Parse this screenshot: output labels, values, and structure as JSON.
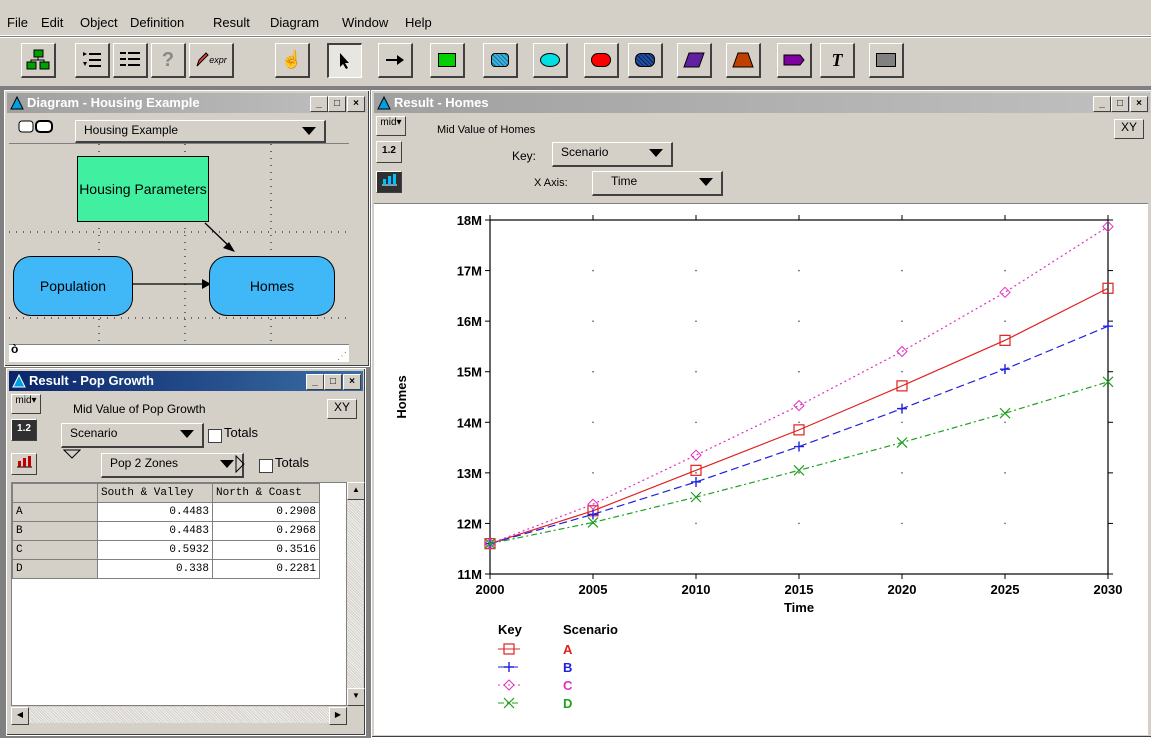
{
  "menu": [
    "File",
    "Edit",
    "Object",
    "Definition",
    "Result",
    "Diagram",
    "Window",
    "Help"
  ],
  "toolbar": {
    "expr_label": "expr",
    "text_tool_label": "T",
    "tools": [
      {
        "name": "diagram-tool",
        "icon": "diagram-icon"
      },
      {
        "name": "outline-tool",
        "icon": "outline-icon"
      },
      {
        "name": "list-tool",
        "icon": "list-icon"
      },
      {
        "name": "help-tool",
        "icon": "help-icon"
      },
      {
        "name": "expr-tool",
        "icon": "pencil-icon"
      },
      {
        "name": "hand-tool",
        "icon": "hand-icon"
      },
      {
        "name": "pointer-tool",
        "icon": "arrow-pointer-icon"
      },
      {
        "name": "arrow-tool",
        "icon": "arrow-right-icon"
      }
    ],
    "node_colors": [
      "#00d000",
      "#40b0d8",
      "#00e0e0",
      "#ff0000",
      "#2050a0",
      "#6020a0",
      "#c04000",
      "#8000a0",
      "#808080"
    ]
  },
  "diagram_window": {
    "title": "Diagram - Housing Example",
    "selector_value": "Housing Example",
    "nodes": {
      "housing_params": "Housing Parameters",
      "population": "Population",
      "homes": "Homes"
    },
    "status_glyph": "ò"
  },
  "popgrowth_window": {
    "title": "Result - Pop Growth",
    "mid_label": "mid",
    "num_label": "1.2",
    "heading": "Mid Value of Pop Growth",
    "xy_label": "XY",
    "row_dropdown": "Scenario",
    "totals_label": "Totals",
    "col_dropdown": "Pop 2 Zones",
    "col_totals_label": "Totals",
    "columns": [
      "South & Valley",
      "North & Coast"
    ],
    "rows": [
      {
        "label": "A",
        "values": [
          "0.4483",
          "0.2908"
        ]
      },
      {
        "label": "B",
        "values": [
          "0.4483",
          "0.2968"
        ]
      },
      {
        "label": "C",
        "values": [
          "0.5932",
          "0.3516"
        ]
      },
      {
        "label": "D",
        "values": [
          "0.338",
          "0.2281"
        ]
      }
    ]
  },
  "homes_window": {
    "title": "Result - Homes",
    "mid_label": "mid",
    "num_label": "1.2",
    "heading": "Mid Value of Homes",
    "xy_label": "XY",
    "key_label": "Key:",
    "key_dropdown": "Scenario",
    "xaxis_label": "X Axis:",
    "xaxis_dropdown": "Time",
    "legend_key": "Key",
    "legend_title": "Scenario"
  },
  "chart_data": {
    "type": "line",
    "title": "",
    "xlabel": "Time",
    "ylabel": "Homes",
    "x": [
      2000,
      2005,
      2010,
      2015,
      2020,
      2025,
      2030
    ],
    "xlim": [
      2000,
      2030
    ],
    "ylim": [
      11,
      18
    ],
    "y_unit_suffix": "M",
    "y_ticks": [
      11,
      12,
      13,
      14,
      15,
      16,
      17,
      18
    ],
    "grid": "dots",
    "legend": "bottom",
    "series": [
      {
        "name": "A",
        "color": "#e02020",
        "marker": "square",
        "dash": "solid",
        "values": [
          11.6,
          12.25,
          13.05,
          13.85,
          14.72,
          15.62,
          16.65
        ]
      },
      {
        "name": "B",
        "color": "#2020e0",
        "marker": "plus",
        "dash": "dashed",
        "values": [
          11.6,
          12.18,
          12.82,
          13.52,
          14.27,
          15.05,
          15.9
        ]
      },
      {
        "name": "C",
        "color": "#e030c0",
        "marker": "diamond",
        "dash": "dotted",
        "values": [
          11.6,
          12.38,
          13.35,
          14.33,
          15.4,
          16.57,
          17.87
        ]
      },
      {
        "name": "D",
        "color": "#20a020",
        "marker": "x",
        "dash": "dashdot",
        "values": [
          11.6,
          12.02,
          12.52,
          13.05,
          13.6,
          14.18,
          14.8
        ]
      }
    ]
  }
}
